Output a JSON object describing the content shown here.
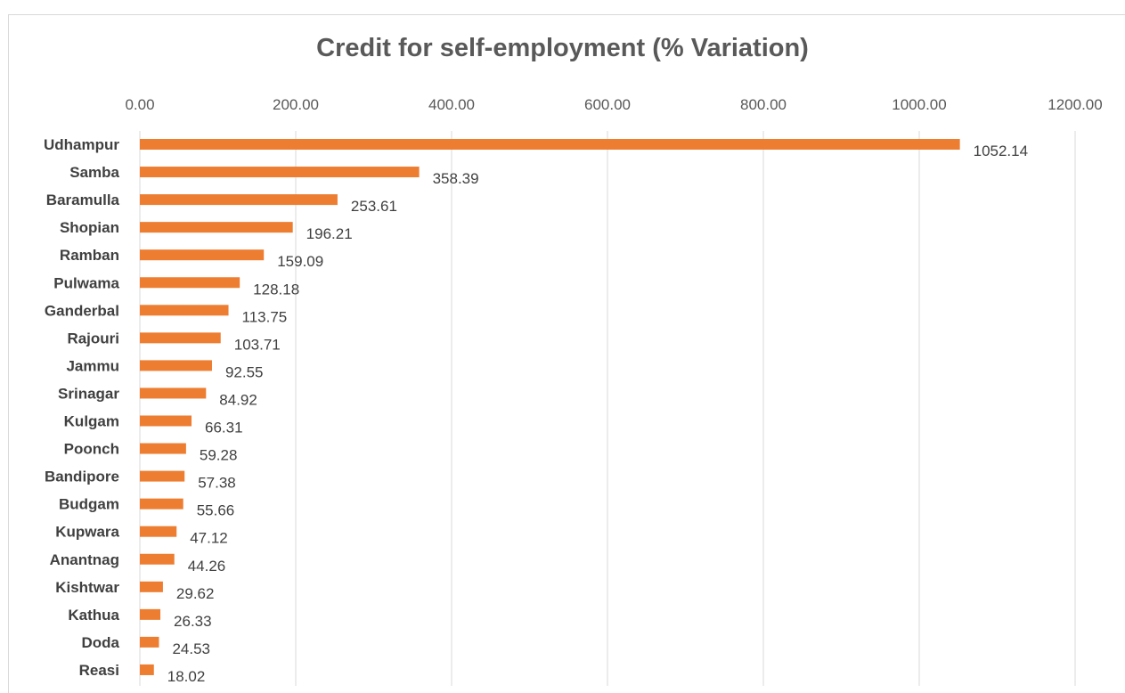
{
  "chart_data": {
    "type": "bar",
    "orientation": "horizontal",
    "title": "Credit for self-employment (% Variation)",
    "categories": [
      "Udhampur",
      "Samba",
      "Baramulla",
      "Shopian",
      "Ramban",
      "Pulwama",
      "Ganderbal",
      "Rajouri",
      "Jammu",
      "Srinagar",
      "Kulgam",
      "Poonch",
      "Bandipore",
      "Budgam",
      "Kupwara",
      "Anantnag",
      "Kishtwar",
      "Kathua",
      "Doda",
      "Reasi"
    ],
    "values": [
      1052.14,
      358.39,
      253.61,
      196.21,
      159.09,
      128.18,
      113.75,
      103.71,
      92.55,
      84.92,
      66.31,
      59.28,
      57.38,
      55.66,
      47.12,
      44.26,
      29.62,
      26.33,
      24.53,
      18.02
    ],
    "value_labels": [
      "1052.14",
      "358.39",
      "253.61",
      "196.21",
      "159.09",
      "128.18",
      "113.75",
      "103.71",
      "92.55",
      "84.92",
      "66.31",
      "59.28",
      "57.38",
      "55.66",
      "47.12",
      "44.26",
      "29.62",
      "26.33",
      "24.53",
      "18.02"
    ],
    "x_ticks": [
      0,
      200,
      400,
      600,
      800,
      1000,
      1200
    ],
    "x_tick_labels": [
      "0.00",
      "200.00",
      "400.00",
      "600.00",
      "800.00",
      "1000.00",
      "1200.00"
    ],
    "xlim": [
      0,
      1200
    ],
    "x_axis_position": "top",
    "xlabel": "",
    "ylabel": "",
    "grid": true,
    "legend": "none",
    "bar_color": "#ED7D31",
    "grid_color": "#d9d9d9"
  }
}
